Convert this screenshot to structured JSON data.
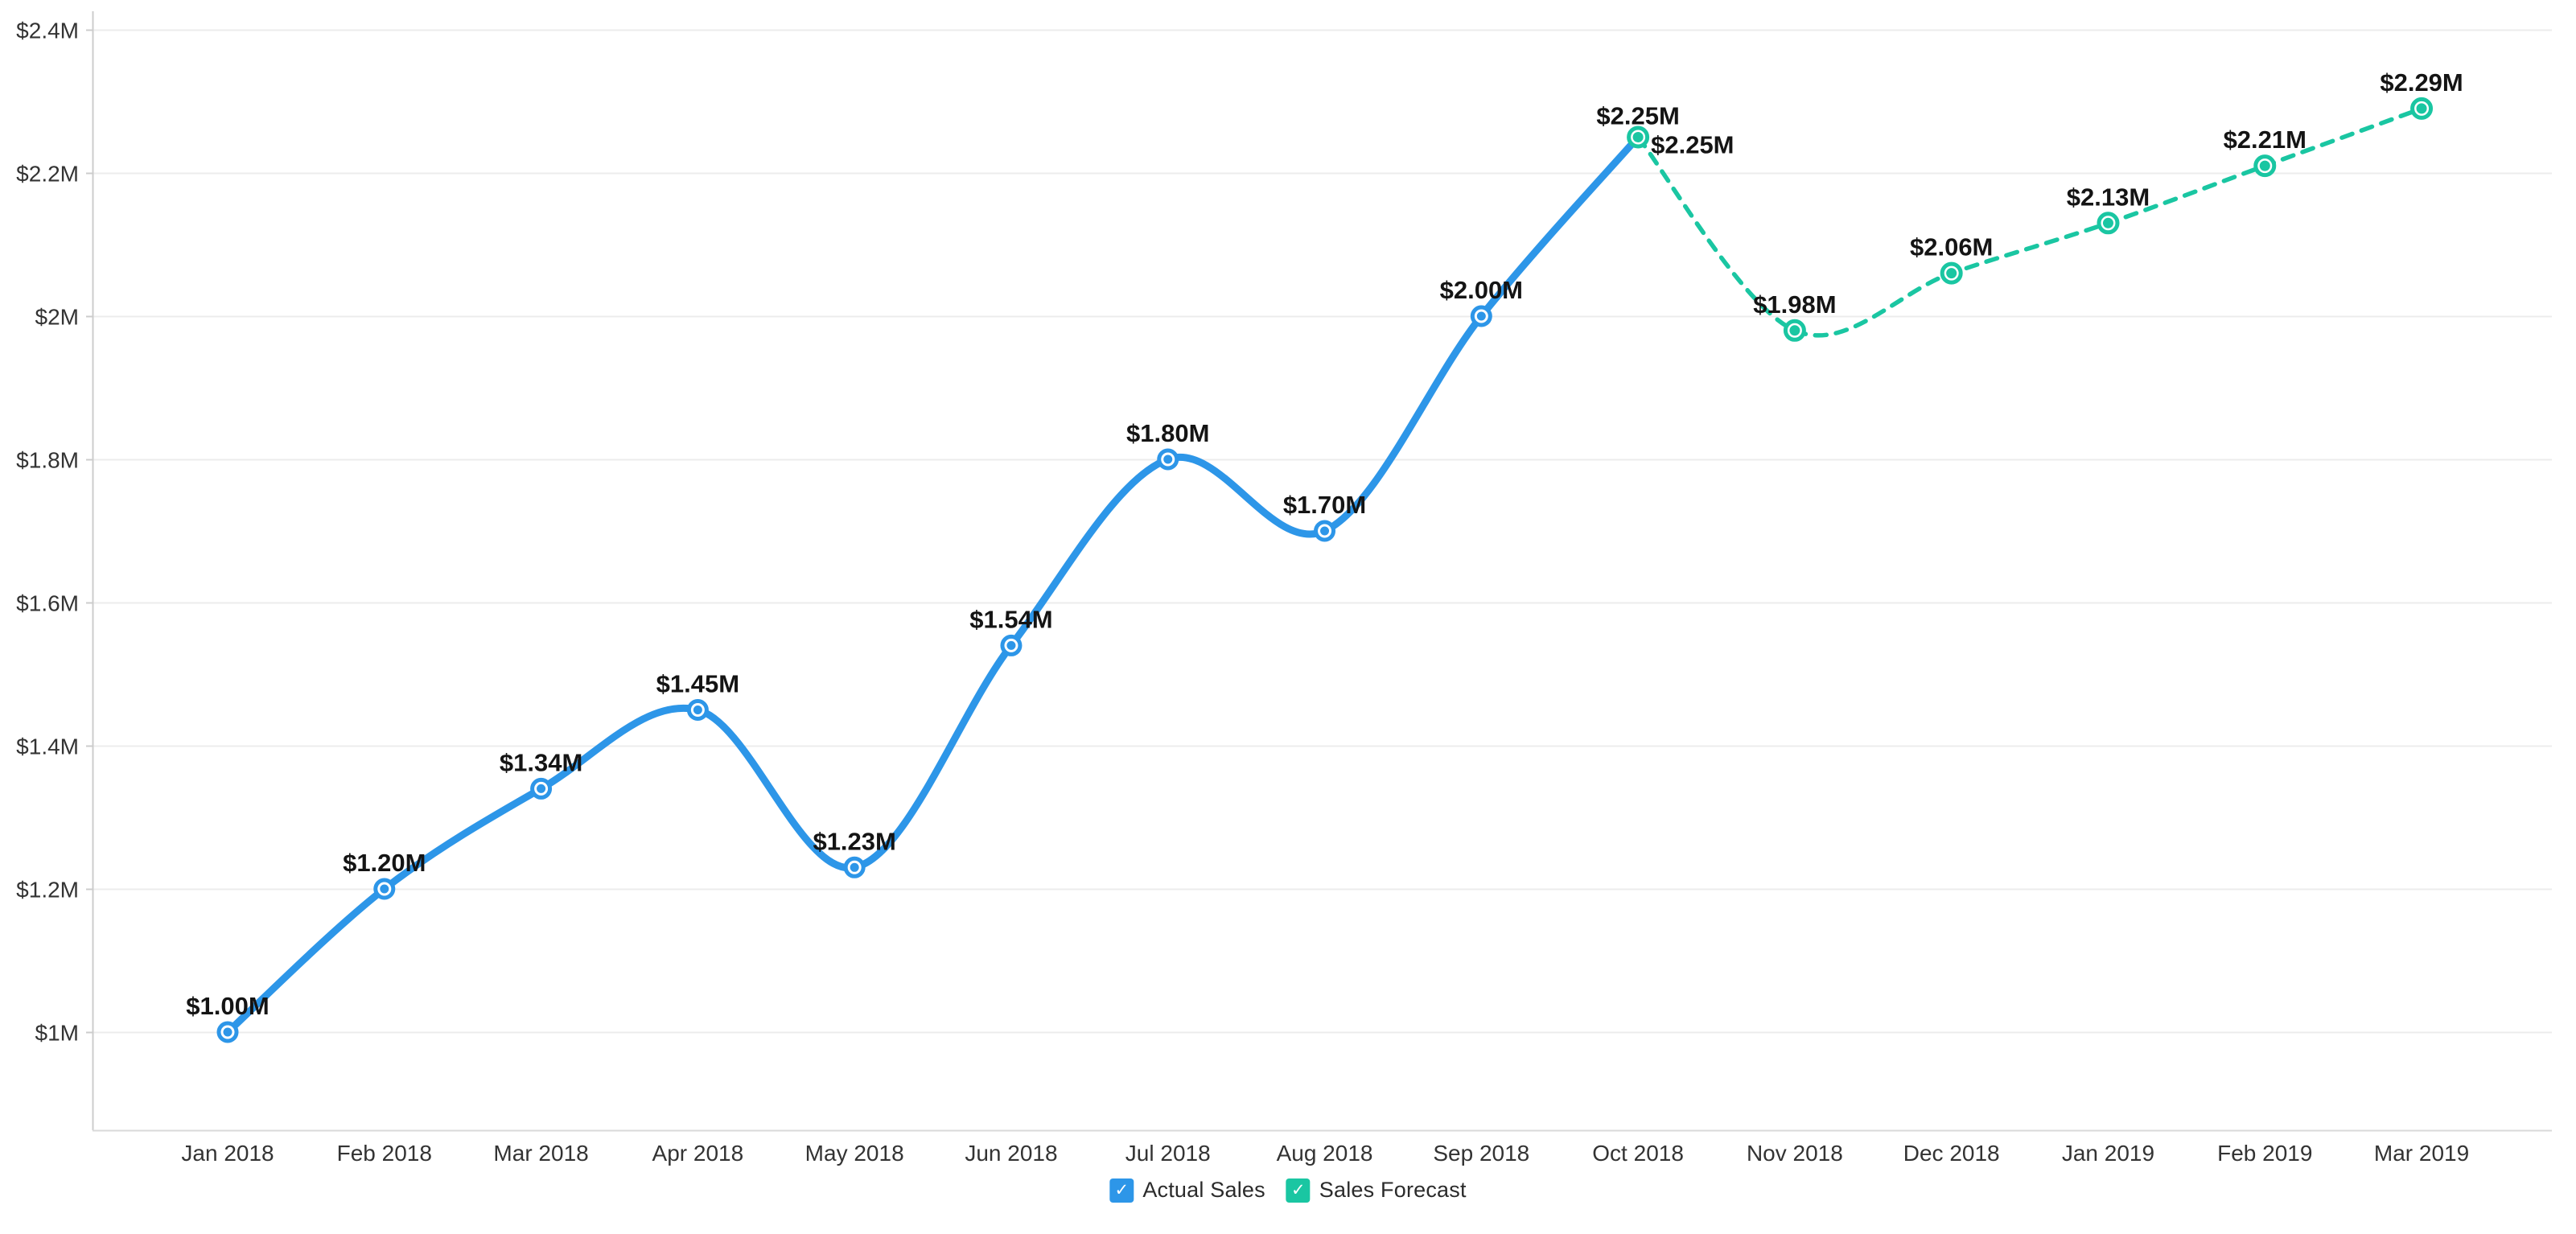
{
  "chart_data": {
    "type": "line",
    "title": "",
    "x_categories": [
      "Jan 2018",
      "Feb 2018",
      "Mar 2018",
      "Apr 2018",
      "May 2018",
      "Jun 2018",
      "Jul 2018",
      "Aug 2018",
      "Sep 2018",
      "Oct 2018",
      "Nov 2018",
      "Dec 2018",
      "Jan 2019",
      "Feb 2019",
      "Mar 2019"
    ],
    "y_axis": {
      "unit": "USD millions",
      "ticks": [
        {
          "value": 1.0,
          "label": "$1M"
        },
        {
          "value": 1.2,
          "label": "$1.2M"
        },
        {
          "value": 1.4,
          "label": "$1.4M"
        },
        {
          "value": 1.6,
          "label": "$1.6M"
        },
        {
          "value": 1.8,
          "label": "$1.8M"
        },
        {
          "value": 2.0,
          "label": "$2M"
        },
        {
          "value": 2.2,
          "label": "$2.2M"
        },
        {
          "value": 2.4,
          "label": "$2.4M"
        }
      ],
      "range": [
        0.86,
        2.43
      ],
      "grid": true
    },
    "series": [
      {
        "name": "Actual Sales",
        "color": "#2D96E8",
        "line_style": "solid",
        "values": [
          1.0,
          1.2,
          1.34,
          1.45,
          1.23,
          1.54,
          1.8,
          1.7,
          2.0,
          2.25,
          null,
          null,
          null,
          null,
          null
        ],
        "point_labels": [
          "$1.00M",
          "$1.20M",
          "$1.34M",
          "$1.45M",
          "$1.23M",
          "$1.54M",
          "$1.80M",
          "$1.70M",
          "$2.00M",
          {
            "text": "$2.25M",
            "dy": -16
          },
          null,
          null,
          null,
          null,
          null
        ]
      },
      {
        "name": "Sales Forecast",
        "color": "#1AC6A2",
        "line_style": "dashed",
        "values": [
          null,
          null,
          null,
          null,
          null,
          null,
          null,
          null,
          null,
          2.25,
          1.98,
          2.06,
          2.13,
          2.21,
          2.29
        ],
        "point_labels": [
          null,
          null,
          null,
          null,
          null,
          null,
          null,
          null,
          null,
          {
            "text": "$2.25M",
            "dx": 16,
            "dy": 20,
            "anchor": "start"
          },
          "$1.98M",
          "$2.06M",
          "$2.13M",
          "$2.21M",
          "$2.29M"
        ]
      }
    ],
    "legend": {
      "position": "bottom-center",
      "items": [
        {
          "label": "Actual Sales",
          "color": "#2D96E8",
          "checked": true,
          "check_glyph": "✓"
        },
        {
          "label": "Sales Forecast",
          "color": "#1AC6A2",
          "checked": true,
          "check_glyph": "✓"
        }
      ]
    },
    "colors": {
      "grid_line": "#ececec",
      "axis_line": "#cccccc",
      "bottom_axis_line": "#d9d9d9",
      "axis_text": "#333333",
      "data_label_text": "#141414",
      "background": "#ffffff"
    }
  }
}
